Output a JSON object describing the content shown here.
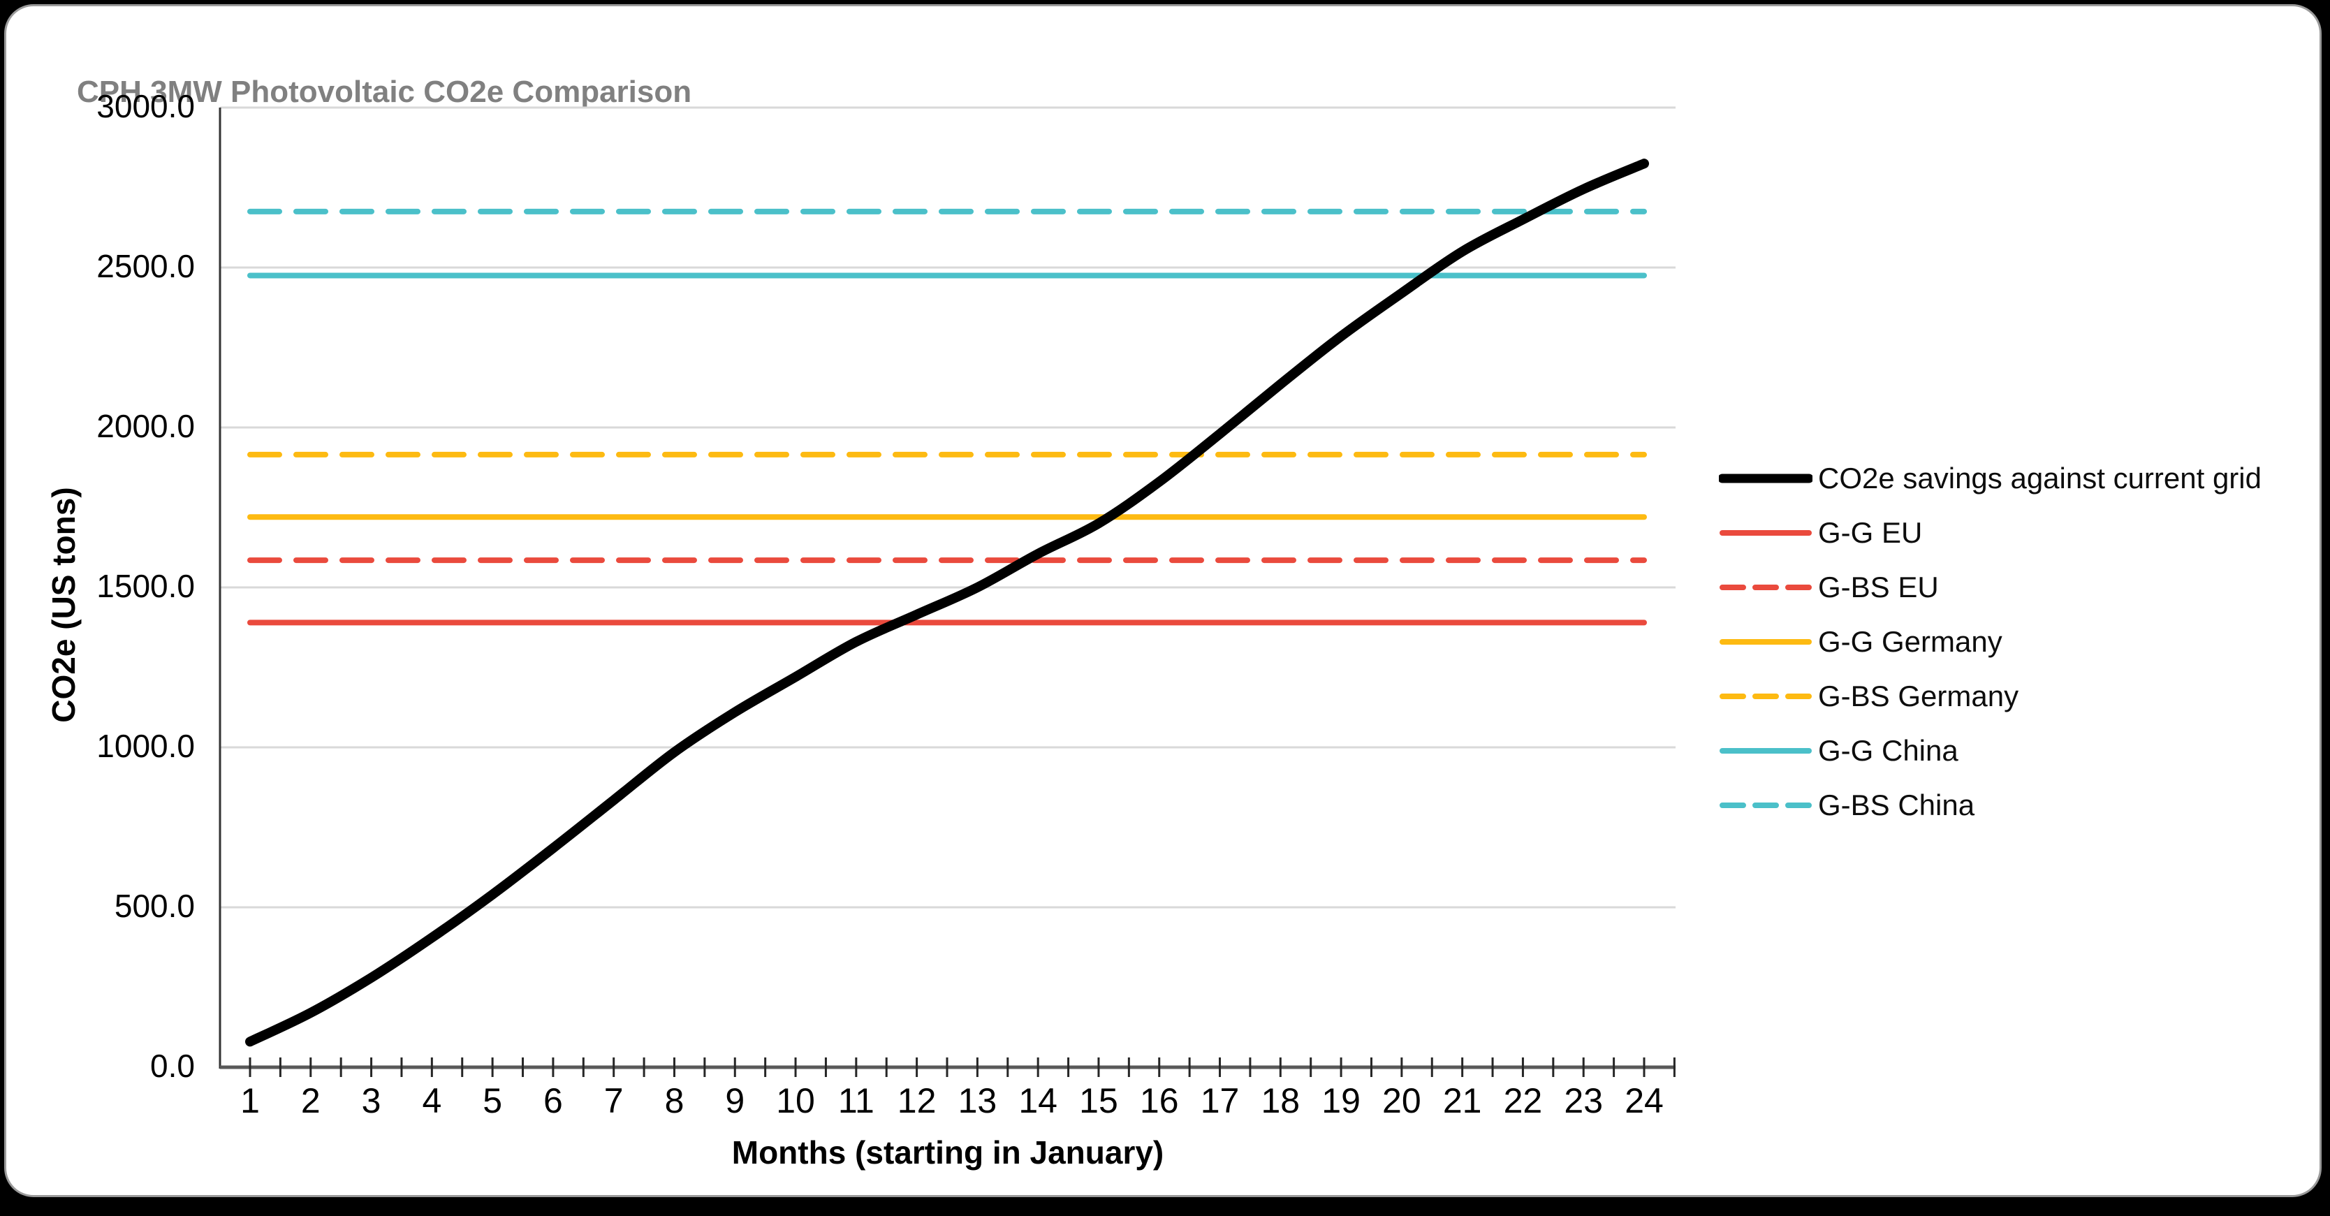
{
  "chart_data": {
    "type": "line",
    "title": "CPH 3MW Photovoltaic CO2e Comparison",
    "xlabel": "Months (starting in January)",
    "ylabel": "CO2e (US tons)",
    "x": [
      1,
      2,
      3,
      4,
      5,
      6,
      7,
      8,
      9,
      10,
      11,
      12,
      13,
      14,
      15,
      16,
      17,
      18,
      19,
      20,
      21,
      22,
      23,
      24
    ],
    "xlim": [
      0.5,
      24.5
    ],
    "ylim": [
      0,
      3000
    ],
    "grid": "horizontal",
    "y_ticks": [
      {
        "label": "0.0",
        "value": 0
      },
      {
        "label": "500.0",
        "value": 500
      },
      {
        "label": "1000.0",
        "value": 1000
      },
      {
        "label": "1500.0",
        "value": 1500
      },
      {
        "label": "2000.0",
        "value": 2000
      },
      {
        "label": "2500.0",
        "value": 2500
      },
      {
        "label": "3000.0",
        "value": 3000
      }
    ],
    "legend_position": "right",
    "series": [
      {
        "name": "CO2e savings against current grid",
        "kind": "smooth-line",
        "color": "#000000",
        "dash": "solid",
        "width": 14,
        "values": [
          80,
          170,
          280,
          405,
          540,
          685,
          835,
          985,
          1110,
          1220,
          1330,
          1415,
          1500,
          1605,
          1700,
          1830,
          1980,
          2135,
          2285,
          2420,
          2550,
          2650,
          2745,
          2825
        ]
      },
      {
        "name": "G-G EU",
        "kind": "constant",
        "color": "#ea4a3d",
        "dash": "solid",
        "width": 8,
        "value": 1390
      },
      {
        "name": "G-BS EU",
        "kind": "constant",
        "color": "#ea4a3d",
        "dash": "dashed",
        "width": 8,
        "value": 1585
      },
      {
        "name": "G-G Germany",
        "kind": "constant",
        "color": "#fdba12",
        "dash": "solid",
        "width": 8,
        "value": 1720
      },
      {
        "name": "G-BS Germany",
        "kind": "constant",
        "color": "#fdba12",
        "dash": "dashed",
        "width": 8,
        "value": 1915
      },
      {
        "name": "G-G China",
        "kind": "constant",
        "color": "#4bc0c9",
        "dash": "solid",
        "width": 8,
        "value": 2475
      },
      {
        "name": "G-BS China",
        "kind": "constant",
        "color": "#4bc0c9",
        "dash": "dashed",
        "width": 8,
        "value": 2675
      }
    ],
    "colors": {
      "title": "#808080",
      "gridline": "#d9d9d9",
      "axis_line": "#595959",
      "tick_mark": "#262626",
      "plot_background": "#ffffff",
      "page_background": "#000000"
    }
  }
}
